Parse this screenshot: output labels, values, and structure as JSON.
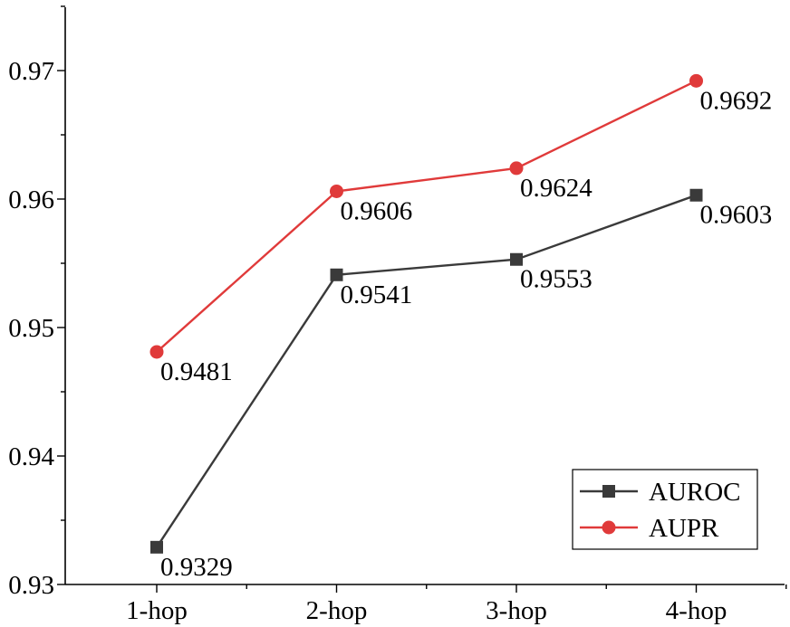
{
  "chart_data": {
    "type": "line",
    "categories": [
      "1-hop",
      "2-hop",
      "3-hop",
      "4-hop"
    ],
    "series": [
      {
        "name": "AUROC",
        "values": [
          0.9329,
          0.9541,
          0.9553,
          0.9603
        ],
        "labels": [
          "0.9329",
          "0.9541",
          "0.9553",
          "0.9603"
        ],
        "color": "#3a3a3a",
        "marker": "square"
      },
      {
        "name": "AUPR",
        "values": [
          0.9481,
          0.9606,
          0.9624,
          0.9692
        ],
        "labels": [
          "0.9481",
          "0.9606",
          "0.9624",
          "0.9692"
        ],
        "color": "#e03a3a",
        "marker": "circle"
      }
    ],
    "ylim": [
      0.93,
      0.975
    ],
    "yticks": [
      0.93,
      0.94,
      0.95,
      0.96,
      0.97
    ],
    "ytick_labels": [
      "0.93",
      "0.94",
      "0.95",
      "0.96",
      "0.97"
    ],
    "title": "",
    "xlabel": "",
    "ylabel": "",
    "grid": false,
    "legend_position": "bottom-right"
  }
}
